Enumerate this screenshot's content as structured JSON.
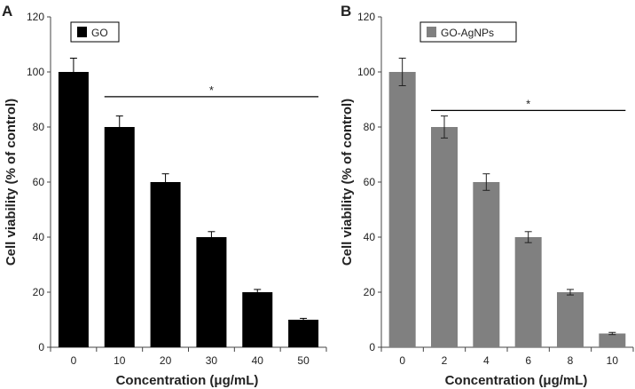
{
  "chart_data": [
    {
      "type": "bar",
      "panel_label": "A",
      "legend": "GO",
      "color": "#000000",
      "categories": [
        "0",
        "10",
        "20",
        "30",
        "40",
        "50"
      ],
      "values": [
        100,
        80,
        60,
        40,
        20,
        10
      ],
      "errors": [
        5,
        4,
        3,
        2,
        1,
        0.5
      ],
      "xlabel": "Concentration (μg/mL)",
      "ylabel": "Cell viability (% of control)",
      "ylim": [
        0,
        120
      ],
      "yticks": [
        "0",
        "20",
        "40",
        "60",
        "80",
        "100",
        "120"
      ],
      "significance": {
        "marker": "*",
        "y": 91,
        "from_index": 1,
        "to_index": 5
      }
    },
    {
      "type": "bar",
      "panel_label": "B",
      "legend": "GO-AgNPs",
      "color": "#808080",
      "categories": [
        "0",
        "2",
        "4",
        "6",
        "8",
        "10"
      ],
      "values": [
        100,
        80,
        60,
        40,
        20,
        5
      ],
      "errors": [
        5,
        4,
        3,
        2,
        1,
        0.4
      ],
      "xlabel": "Concentration (μg/mL)",
      "ylabel": "Cell viability (% of control)",
      "ylim": [
        0,
        120
      ],
      "yticks": [
        "0",
        "20",
        "40",
        "60",
        "80",
        "100",
        "120"
      ],
      "significance": {
        "marker": "*",
        "y": 86,
        "from_index": 1,
        "to_index": 5
      }
    }
  ]
}
